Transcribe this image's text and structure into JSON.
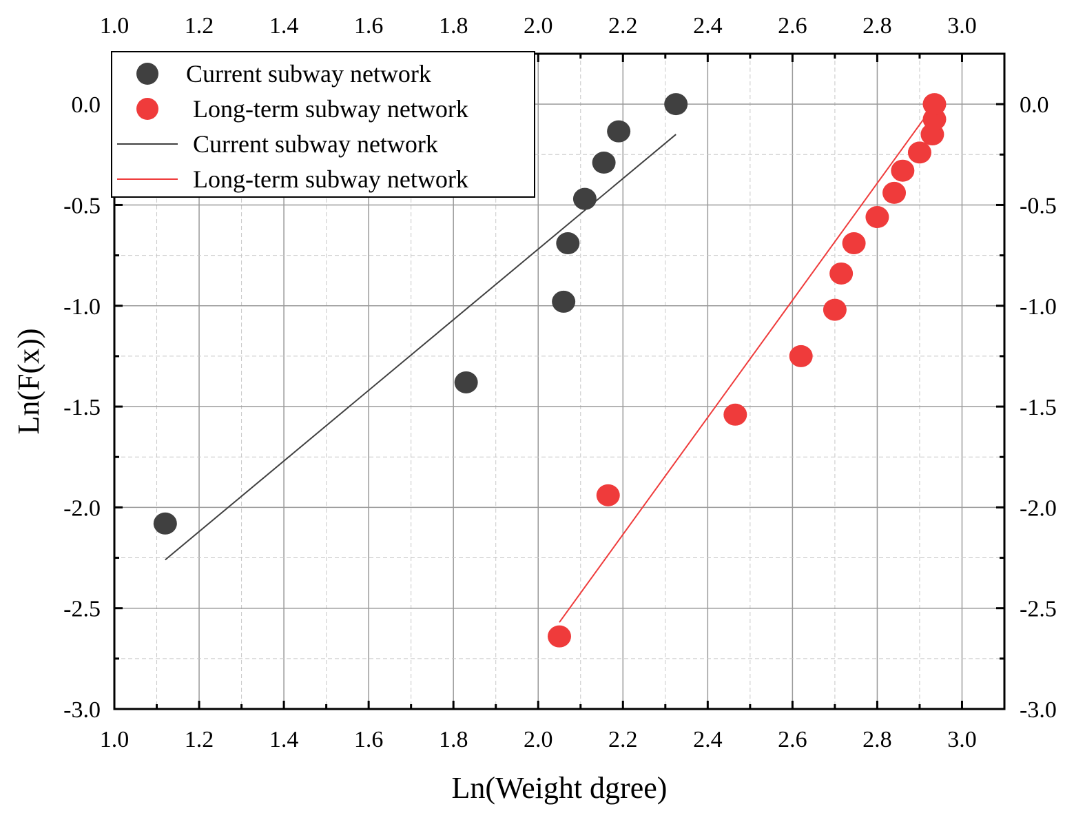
{
  "chart_data": {
    "type": "scatter",
    "title": "",
    "xlabel": "Ln(Weight dgree)",
    "ylabel": "Ln(F(x))",
    "xlim": [
      1.0,
      3.1
    ],
    "ylim": [
      -3.0,
      0.25
    ],
    "x_ticks": [
      "1.0",
      "1.2",
      "1.4",
      "1.6",
      "1.8",
      "2.0",
      "2.2",
      "2.4",
      "2.6",
      "2.8",
      "3.0"
    ],
    "y_ticks": [
      "0.0",
      "-0.5",
      "-1.0",
      "-1.5",
      "-2.0",
      "-2.5",
      "-3.0"
    ],
    "grid": true,
    "legend_position": "top-left",
    "series": [
      {
        "name": "Current subway network",
        "kind": "scatter",
        "color": "#404040",
        "x": [
          1.12,
          1.83,
          2.06,
          2.07,
          2.11,
          2.155,
          2.19,
          2.325
        ],
        "y": [
          -2.08,
          -1.38,
          -0.98,
          -0.69,
          -0.47,
          -0.29,
          -0.135,
          0.0
        ]
      },
      {
        "name": "Long-term subway network",
        "kind": "scatter",
        "color": "#ef3b3b",
        "x": [
          2.05,
          2.165,
          2.465,
          2.62,
          2.7,
          2.715,
          2.745,
          2.8,
          2.84,
          2.86,
          2.9,
          2.93,
          2.935,
          2.935
        ],
        "y": [
          -2.64,
          -1.94,
          -1.54,
          -1.25,
          -1.02,
          -0.84,
          -0.69,
          -0.56,
          -0.44,
          -0.33,
          -0.24,
          -0.15,
          -0.075,
          0.0
        ]
      },
      {
        "name": "Current subway network",
        "kind": "line",
        "color": "#404040",
        "x": [
          1.12,
          2.325
        ],
        "y": [
          -2.26,
          -0.15
        ]
      },
      {
        "name": "Long-term subway network",
        "kind": "line",
        "color": "#ef3b3b",
        "x": [
          2.05,
          2.935
        ],
        "y": [
          -2.57,
          0.0
        ]
      }
    ]
  }
}
